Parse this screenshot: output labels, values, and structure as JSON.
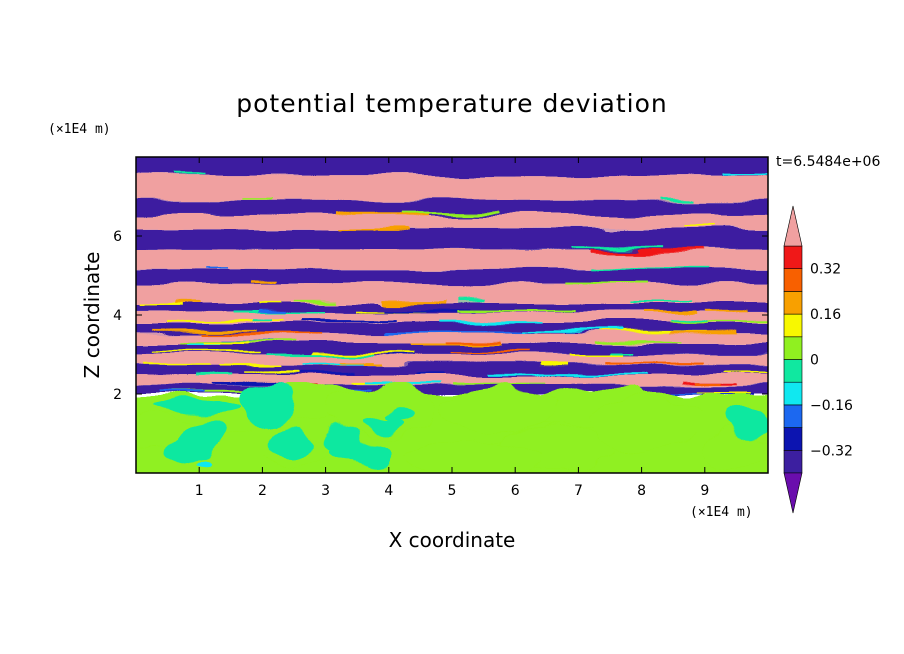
{
  "chart_data": {
    "type": "heatmap",
    "title": "potential temperature deviation",
    "xlabel": "X coordinate",
    "ylabel": "Z coordinate",
    "x_unit": "(×1E4 m)",
    "y_unit": "(×1E4 m)",
    "time_label": "t=6.5484e+06",
    "xlim": [
      0,
      10
    ],
    "ylim": [
      0,
      8
    ],
    "xticks": [
      1,
      2,
      3,
      4,
      5,
      6,
      7,
      8,
      9
    ],
    "yticks": [
      2,
      4,
      6
    ],
    "colorbar": {
      "levels": [
        -0.4,
        -0.32,
        -0.24,
        -0.16,
        -0.08,
        0,
        0.08,
        0.16,
        0.24,
        0.32,
        0.4
      ],
      "tick_labels": [
        "0.32",
        "0.16",
        "0",
        "−0.16",
        "−0.32"
      ],
      "tick_values": [
        0.32,
        0.16,
        0,
        -0.16,
        -0.32
      ],
      "colors": [
        "#6a0dad",
        "#3c1fa0",
        "#0c14b0",
        "#1c68f0",
        "#10e8f0",
        "#10e8a0",
        "#90f020",
        "#f8f800",
        "#f8a000",
        "#f86000",
        "#f01818",
        "#f0a0a0"
      ],
      "extend": "both"
    },
    "description_regions": {
      "lower_layer_zmax": 2.0,
      "lower_layer_dominant": [
        0.0,
        0.08
      ],
      "upper_layer_pattern": "alternating horizontal bands",
      "upper_band_values": [
        -0.4,
        0.4
      ]
    }
  }
}
